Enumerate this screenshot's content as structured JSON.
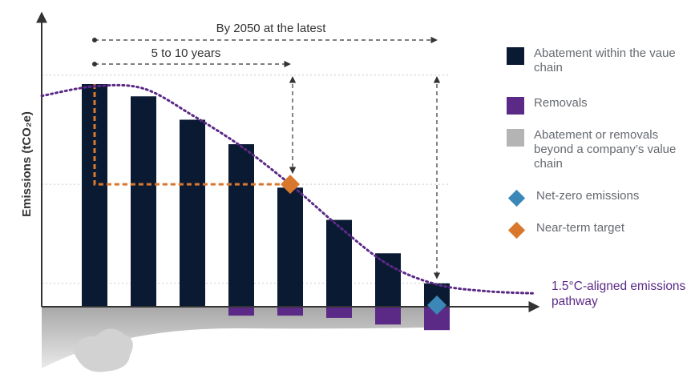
{
  "chart_data": {
    "type": "bar",
    "ylabel": "Emissions (tCO₂e)",
    "categories": [
      "",
      "",
      "",
      "",
      "",
      "",
      "",
      ""
    ],
    "series": [
      {
        "name": "Abatement within the vaue chain",
        "color": "#0b1a33",
        "values": [
          100,
          94.5,
          84,
          73,
          53.5,
          39,
          24,
          10.5
        ]
      },
      {
        "name": "Removals",
        "color": "#5b2a86",
        "values": [
          0,
          0,
          0,
          -4,
          -4,
          -5,
          -8,
          -10.5
        ]
      }
    ],
    "ylim": [
      -11,
      100
    ],
    "pathway": {
      "name": "1.5°C-aligned emissions pathway",
      "color": "#5b2a86",
      "points": [
        [
          0,
          99
        ],
        [
          1,
          98
        ],
        [
          2,
          86
        ],
        [
          3,
          72
        ],
        [
          4,
          55
        ],
        [
          5,
          36
        ],
        [
          6,
          19
        ],
        [
          7,
          10
        ],
        [
          8,
          7
        ],
        [
          9,
          6
        ]
      ]
    },
    "near_term_target": {
      "x": 4,
      "y": 55,
      "color": "#d9782d",
      "base_x": 0,
      "base_y": 100
    },
    "net_zero": {
      "x": 7,
      "y": 0,
      "color": "#3a87b8"
    },
    "annotations": [
      "By 2050 at the latest",
      "5 to 10 years"
    ],
    "legend_position": "right"
  },
  "legend": [
    {
      "label": "Abatement within the vaue chain",
      "color": "#0b1a33",
      "shape": "square"
    },
    {
      "label": "Removals",
      "color": "#5b2a86",
      "shape": "square"
    },
    {
      "label": "Abatement or removals beyond a company’s value chain",
      "color": "#b4b4b4",
      "shape": "square"
    },
    {
      "label": "Net-zero emissions",
      "color": "#3a87b8",
      "shape": "diamond"
    },
    {
      "label": "Near-term target",
      "color": "#d9782d",
      "shape": "diamond"
    }
  ]
}
